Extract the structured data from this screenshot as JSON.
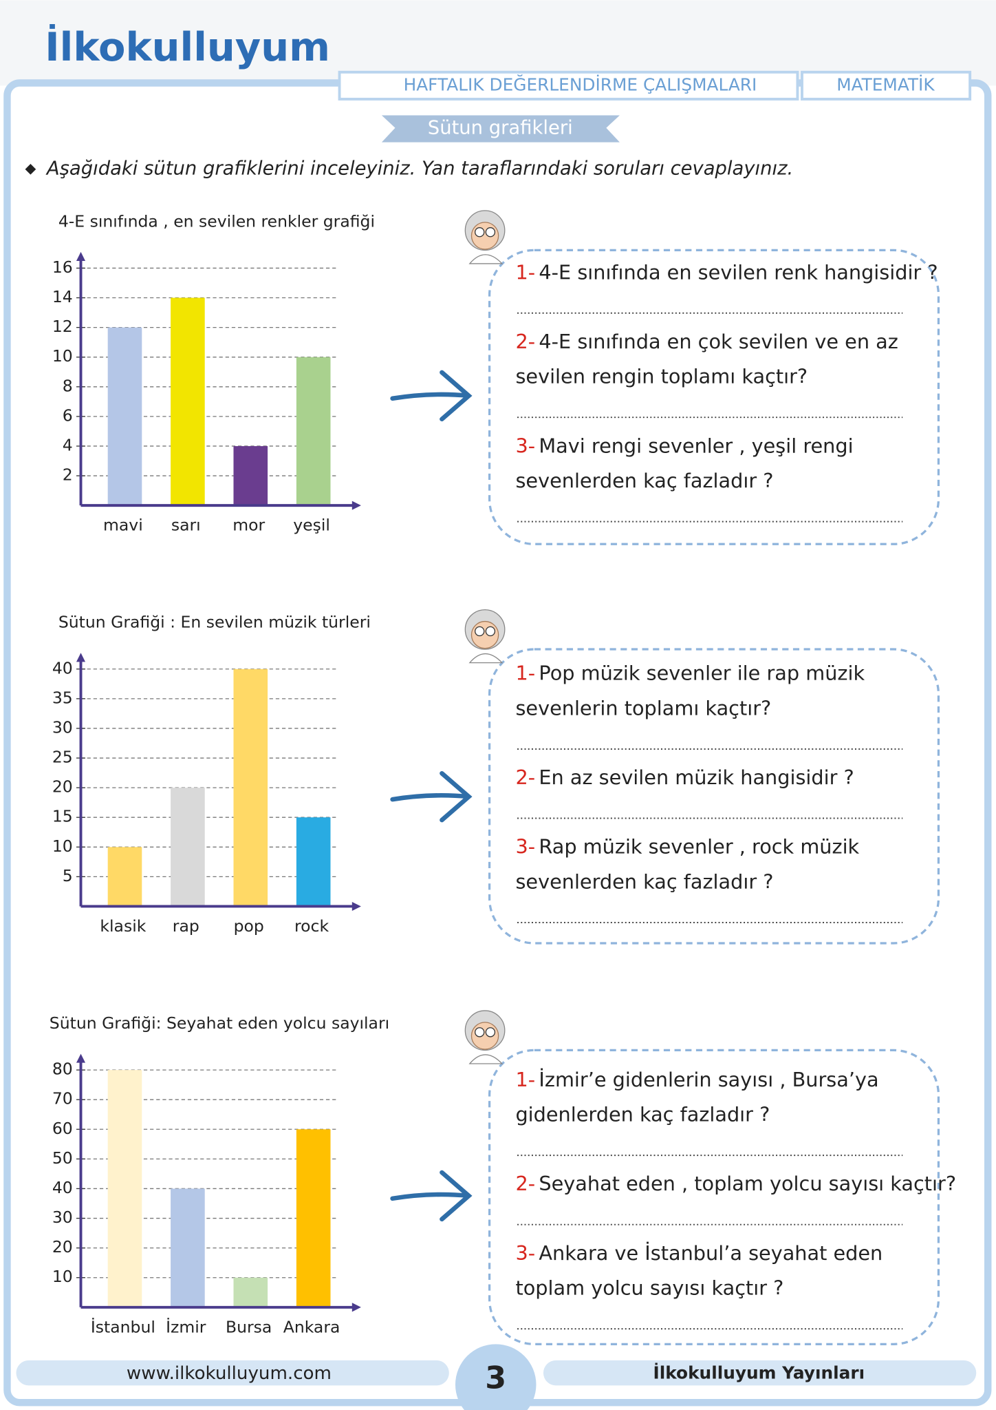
{
  "header": {
    "logo": "İlkokulluyum",
    "banner": "HAFTALIK DEĞERLENDİRME ÇALIŞMALARI",
    "subject": "MATEMATİK",
    "topic": "Sütun grafikleri",
    "instruction": "Aşağıdaki sütun grafiklerini inceleyiniz. Yan taraflarındaki soruları cevaplayınız."
  },
  "chart_data": [
    {
      "type": "bar",
      "title": "4-E sınıfında , en sevilen renkler grafiği",
      "categories": [
        "mavi",
        "sarı",
        "mor",
        "yeşil"
      ],
      "values": [
        12,
        14,
        4,
        10
      ],
      "colors": [
        "#b4c6e7",
        "#f2e500",
        "#6a3d8f",
        "#a9d18e"
      ],
      "ylim": [
        0,
        16
      ],
      "yticks": [
        2,
        4,
        6,
        8,
        10,
        12,
        14,
        16
      ],
      "grid": true
    },
    {
      "type": "bar",
      "title": "Sütun Grafiği : En sevilen müzik türleri",
      "categories": [
        "klasik",
        "rap",
        "pop",
        "rock"
      ],
      "values": [
        10,
        20,
        40,
        15
      ],
      "colors": [
        "#ffd966",
        "#d9d9d9",
        "#ffd966",
        "#29abe2"
      ],
      "ylim": [
        0,
        40
      ],
      "yticks": [
        5,
        10,
        15,
        20,
        25,
        30,
        35,
        40
      ],
      "grid": true
    },
    {
      "type": "bar",
      "title": "Sütun Grafiği: Seyahat eden yolcu sayıları",
      "categories": [
        "İstanbul",
        "İzmir",
        "Bursa",
        "Ankara"
      ],
      "values": [
        80,
        40,
        10,
        60
      ],
      "colors": [
        "#fff2cc",
        "#b4c7e7",
        "#c5e0b4",
        "#ffc000"
      ],
      "ylim": [
        0,
        80
      ],
      "yticks": [
        10,
        20,
        30,
        40,
        50,
        60,
        70,
        80
      ],
      "grid": true
    }
  ],
  "questions": [
    {
      "items": [
        {
          "number": "1-",
          "lines": [
            "4-E sınıfında en sevilen renk hangisidir ?"
          ]
        },
        {
          "number": "2-",
          "lines": [
            "4-E sınıfında en çok sevilen ve en az",
            "sevilen rengin toplamı kaçtır?"
          ]
        },
        {
          "number": "3-",
          "lines": [
            "Mavi rengi sevenler , yeşil rengi",
            "sevenlerden kaç fazladır ?"
          ]
        }
      ]
    },
    {
      "items": [
        {
          "number": "1-",
          "lines": [
            "Pop müzik sevenler ile rap müzik",
            "sevenlerin toplamı kaçtır?"
          ]
        },
        {
          "number": "2-",
          "lines": [
            "En az sevilen müzik hangisidir ?"
          ]
        },
        {
          "number": "3-",
          "lines": [
            "Rap müzik sevenler , rock müzik",
            "sevenlerden kaç fazladır ?"
          ]
        }
      ]
    },
    {
      "items": [
        {
          "number": "1-",
          "lines": [
            "İzmir’e gidenlerin sayısı , Bursa’ya",
            "gidenlerden kaç fazladır ?"
          ]
        },
        {
          "number": "2-",
          "lines": [
            "Seyahat eden , toplam yolcu sayısı kaçtır?"
          ]
        },
        {
          "number": "3-",
          "lines": [
            "Ankara ve İstanbul’a seyahat eden",
            "toplam yolcu sayısı kaçtır ?"
          ]
        }
      ]
    }
  ],
  "footer": {
    "website": "www.ilkokulluyum.com",
    "page": "3",
    "publisher": "İlkokulluyum Yayınları"
  }
}
